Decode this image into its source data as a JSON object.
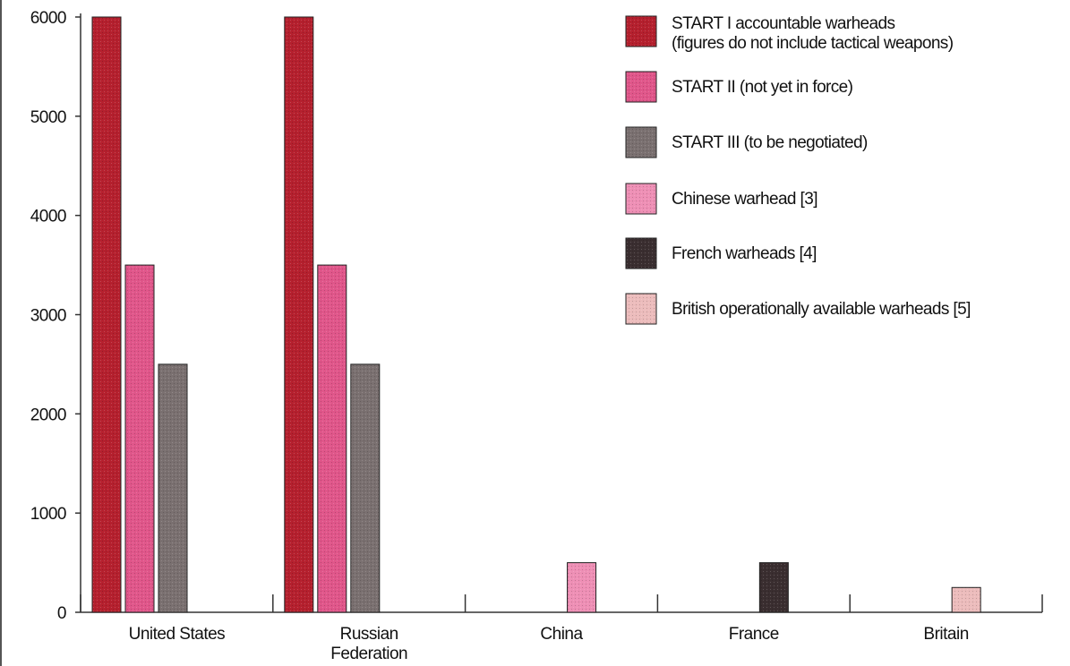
{
  "chart_data": {
    "type": "bar",
    "title": "",
    "xlabel": "",
    "ylabel": "",
    "ylim": [
      0,
      6000
    ],
    "yticks": [
      0,
      1000,
      2000,
      3000,
      4000,
      5000,
      6000
    ],
    "categories": [
      [
        "United States"
      ],
      [
        "Russian",
        "Federation"
      ],
      [
        "China"
      ],
      [
        "France"
      ],
      [
        "Britain"
      ]
    ],
    "grid": false,
    "legend_position": "top-right",
    "series": [
      {
        "name": [
          "START I accountable warheads",
          "(figures do not include tactical weapons)"
        ],
        "color": "#b5202e",
        "values": [
          6000,
          6000,
          null,
          null,
          null
        ]
      },
      {
        "name": [
          "START II (not yet in force)"
        ],
        "color": "#e0568a",
        "values": [
          3500,
          3500,
          null,
          null,
          null
        ]
      },
      {
        "name": [
          "START III (to be negotiated)"
        ],
        "color": "#7a7070",
        "values": [
          2500,
          2500,
          null,
          null,
          null
        ]
      },
      {
        "name": [
          "Chinese warhead [3]"
        ],
        "color": "#ee8fb5",
        "values": [
          null,
          null,
          500,
          null,
          null
        ]
      },
      {
        "name": [
          "French warheads [4]"
        ],
        "color": "#3a2e30",
        "values": [
          null,
          null,
          null,
          500,
          null
        ]
      },
      {
        "name": [
          "British operationally available warheads [5]"
        ],
        "color": "#ecbcbc",
        "values": [
          null,
          null,
          null,
          null,
          250
        ]
      }
    ]
  }
}
